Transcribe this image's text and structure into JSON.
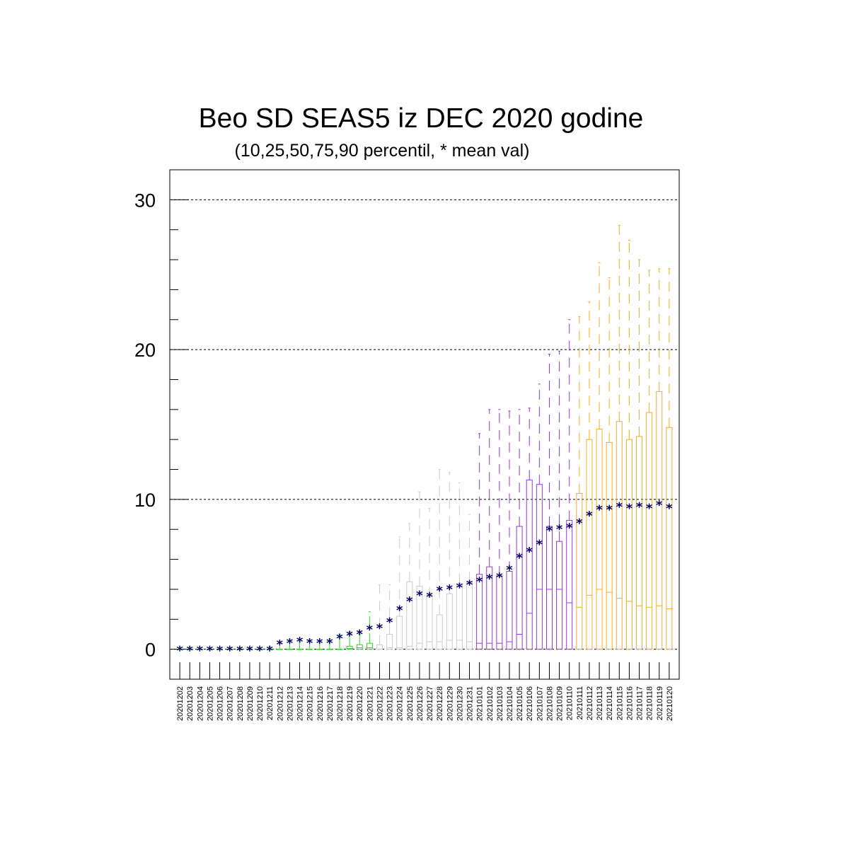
{
  "chart_data": {
    "type": "box",
    "title": "Beo SD SEAS5 iz DEC 2020 godine",
    "subtitle": "(10,25,50,75,90 percentil, * mean val)",
    "ylim": [
      -2,
      32
    ],
    "yticks": [
      0,
      10,
      20,
      30
    ],
    "grid": "dashed horizontal at major ticks",
    "colors": {
      "green": "#22dd22",
      "grey": "#cccccc",
      "purple": "#9933ee",
      "orange": "#ffaa22",
      "mean": "#000066",
      "black": "#000000"
    },
    "categories": [
      "20201202",
      "20201203",
      "20201204",
      "20201205",
      "20201206",
      "20201207",
      "20201208",
      "20201209",
      "20201210",
      "20201211",
      "20201212",
      "20201213",
      "20201214",
      "20201215",
      "20201216",
      "20201217",
      "20201218",
      "20201219",
      "20201220",
      "20201221",
      "20201222",
      "20201223",
      "20201224",
      "20201225",
      "20201226",
      "20201227",
      "20201228",
      "20201229",
      "20201230",
      "20201231",
      "20210101",
      "20210102",
      "20210103",
      "20210104",
      "20210105",
      "20210106",
      "20210107",
      "20210108",
      "20210109",
      "20210110",
      "20210111",
      "20210112",
      "20210113",
      "20210114",
      "20210115",
      "20210116",
      "20210117",
      "20210118",
      "20210119",
      "20210120"
    ],
    "color_groups": [
      "green",
      "green",
      "green",
      "green",
      "green",
      "green",
      "green",
      "green",
      "green",
      "green",
      "green",
      "green",
      "green",
      "green",
      "green",
      "green",
      "green",
      "green",
      "green",
      "green",
      "grey",
      "grey",
      "grey",
      "grey",
      "grey",
      "grey",
      "grey",
      "grey",
      "grey",
      "grey",
      "purple",
      "purple",
      "purple",
      "purple",
      "purple",
      "purple",
      "purple",
      "purple",
      "purple",
      "purple",
      "orange",
      "orange",
      "orange",
      "orange",
      "orange",
      "orange",
      "orange",
      "orange",
      "orange",
      "orange"
    ],
    "p10": [
      0,
      0,
      0,
      0,
      0,
      0,
      0,
      0,
      0,
      0,
      0,
      0,
      0,
      0,
      0,
      0,
      0,
      0,
      0,
      0,
      0,
      0,
      0,
      0,
      0,
      0,
      0,
      0,
      0,
      0,
      0,
      0,
      0,
      0,
      0,
      0,
      0,
      0,
      0,
      0,
      0,
      0,
      0,
      0,
      0,
      0,
      0,
      0,
      0,
      0
    ],
    "p25": [
      0,
      0,
      0,
      0,
      0,
      0,
      0,
      0,
      0,
      0,
      0,
      0,
      0,
      0,
      0,
      0,
      0,
      0,
      0,
      0,
      0,
      0,
      0,
      0,
      0,
      0,
      0,
      0,
      0,
      0,
      0,
      0,
      0,
      0,
      0,
      0,
      0,
      0,
      0,
      0,
      0,
      0,
      0,
      0,
      0,
      0,
      0,
      0,
      0,
      0
    ],
    "p50": [
      0,
      0,
      0,
      0,
      0,
      0,
      0,
      0,
      0,
      0,
      0,
      0,
      0,
      0,
      0,
      0,
      0,
      0.05,
      0.1,
      0.1,
      0,
      0.1,
      0.1,
      0.2,
      0.4,
      0.5,
      0.5,
      0.6,
      0.6,
      0.5,
      0.4,
      0.4,
      0.4,
      0.5,
      1.0,
      2.4,
      4.0,
      4.0,
      4.0,
      3.1,
      2.8,
      3.6,
      4.0,
      3.8,
      3.4,
      3.2,
      2.9,
      2.8,
      2.9,
      2.7
    ],
    "p75": [
      0,
      0,
      0,
      0,
      0,
      0,
      0,
      0,
      0,
      0,
      0,
      0,
      0,
      0,
      0,
      0,
      0,
      0.2,
      0.3,
      0.4,
      0.3,
      1.0,
      2.2,
      4.5,
      4.2,
      3.5,
      2.3,
      3.7,
      4.4,
      4.5,
      5.0,
      5.5,
      4.9,
      5.2,
      8.2,
      11.3,
      11.0,
      8.2,
      7.2,
      8.6,
      10.4,
      14.0,
      14.7,
      13.8,
      15.2,
      14.0,
      14.2,
      15.8,
      17.2,
      14.8
    ],
    "p90": [
      0,
      0,
      0,
      0,
      0,
      0,
      0,
      0,
      0,
      0.2,
      0.4,
      0.6,
      0.5,
      0.6,
      0.5,
      0.7,
      1.0,
      1.2,
      1.0,
      2.5,
      4.3,
      4.3,
      7.5,
      8.4,
      10.5,
      9.4,
      12.0,
      11.8,
      11.1,
      9.0,
      14.4,
      16.0,
      16.0,
      15.9,
      16.0,
      16.1,
      17.7,
      19.7,
      19.9,
      22.0,
      22.2,
      23.2,
      25.8,
      24.8,
      28.3,
      27.3,
      26.0,
      25.3,
      25.4,
      25.4
    ],
    "mean": [
      0,
      0,
      0,
      0,
      0,
      0,
      0,
      0,
      0,
      0,
      0.4,
      0.5,
      0.6,
      0.5,
      0.5,
      0.5,
      0.8,
      1.0,
      1.1,
      1.4,
      1.5,
      1.9,
      2.7,
      3.3,
      3.7,
      3.6,
      4.0,
      4.1,
      4.2,
      4.4,
      4.6,
      4.8,
      4.9,
      5.4,
      6.2,
      6.6,
      7.1,
      8.0,
      8.1,
      8.2,
      8.5,
      9.0,
      9.4,
      9.4,
      9.6,
      9.5,
      9.6,
      9.5,
      9.7,
      9.5
    ]
  }
}
